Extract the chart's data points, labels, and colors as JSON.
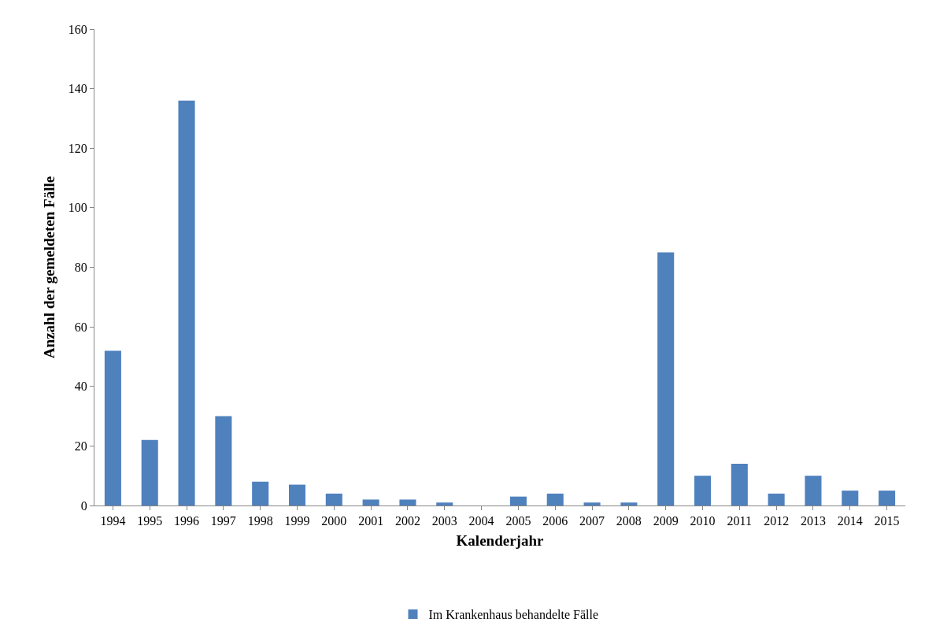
{
  "chart_data": {
    "type": "bar",
    "xlabel": "Kalenderjahr",
    "ylabel": "Anzahl der gemeldeten Fälle",
    "categories": [
      "1994",
      "1995",
      "1996",
      "1997",
      "1998",
      "1999",
      "2000",
      "2001",
      "2002",
      "2003",
      "2004",
      "2005",
      "2006",
      "2007",
      "2008",
      "2009",
      "2010",
      "2011",
      "2012",
      "2013",
      "2014",
      "2015"
    ],
    "series": [
      {
        "name": "Im Krankenhaus behandelte Fälle",
        "color": "#4f81bd",
        "values": [
          52,
          22,
          136,
          30,
          8,
          7,
          4,
          2,
          2,
          1,
          0,
          3,
          4,
          1,
          1,
          85,
          10,
          14,
          4,
          10,
          5,
          5
        ]
      }
    ],
    "ylim": [
      0,
      160
    ],
    "yticks": [
      0,
      20,
      40,
      60,
      80,
      100,
      120,
      140,
      160
    ],
    "grid": false,
    "legend": "bottom"
  }
}
